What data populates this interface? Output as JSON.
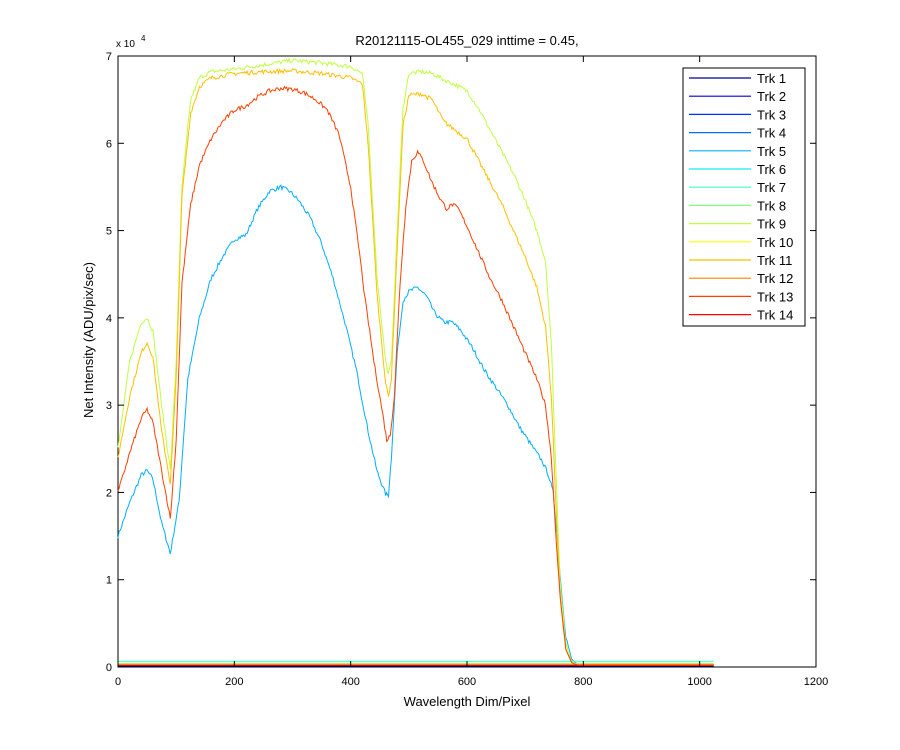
{
  "chart_data": {
    "type": "line",
    "title": "R20121115-OL455_029 inttime = 0.45,",
    "xlabel": "Wavelength Dim/Pixel",
    "ylabel": "Net Intensity (ADU/pix/sec)",
    "xlim": [
      0,
      1200
    ],
    "ylim": [
      0,
      70000
    ],
    "y_exponent_label": "x 10",
    "y_exponent_power": "4",
    "x_ticks": [
      0,
      200,
      400,
      600,
      800,
      1000,
      1200
    ],
    "x_tick_labels": [
      "0",
      "200",
      "400",
      "600",
      "800",
      "1000",
      "1200"
    ],
    "y_ticks": [
      0,
      10000,
      20000,
      30000,
      40000,
      50000,
      60000,
      70000
    ],
    "y_tick_labels": [
      "0",
      "1",
      "2",
      "3",
      "4",
      "5",
      "6",
      "7"
    ],
    "grid": false,
    "legend_position": "top-right",
    "series": [
      {
        "name": "Trk 1",
        "color": "#00008f",
        "x": [
          0,
          1024
        ],
        "y": [
          100,
          100
        ]
      },
      {
        "name": "Trk 2",
        "color": "#0000d0",
        "x": [
          0,
          1024
        ],
        "y": [
          150,
          150
        ]
      },
      {
        "name": "Trk 3",
        "color": "#0030ff",
        "x": [
          0,
          1024
        ],
        "y": [
          200,
          200
        ]
      },
      {
        "name": "Trk 4",
        "color": "#0070ff",
        "x": [
          0,
          1024
        ],
        "y": [
          250,
          250
        ]
      },
      {
        "name": "Trk 5",
        "color": "#00afff",
        "x": [
          0,
          20,
          40,
          50,
          60,
          75,
          90,
          105,
          120,
          140,
          160,
          180,
          200,
          220,
          240,
          260,
          280,
          295,
          310,
          330,
          350,
          370,
          390,
          410,
          430,
          445,
          460,
          465,
          470,
          480,
          490,
          500,
          515,
          530,
          545,
          560,
          575,
          590,
          610,
          630,
          650,
          670,
          690,
          710,
          730,
          740,
          748,
          755,
          762,
          770,
          780,
          790,
          800,
          1024
        ],
        "y": [
          15000,
          18800,
          22000,
          22500,
          21500,
          16500,
          13000,
          19000,
          33000,
          40000,
          44500,
          47000,
          49000,
          49500,
          52500,
          54500,
          55000,
          54500,
          53500,
          51500,
          48500,
          44500,
          39500,
          34000,
          27000,
          22500,
          19800,
          19700,
          24000,
          36000,
          42000,
          43000,
          43500,
          42500,
          40500,
          39500,
          39500,
          38500,
          36500,
          34000,
          32000,
          30000,
          27500,
          25500,
          23500,
          22000,
          20000,
          15000,
          9000,
          3500,
          900,
          300,
          200,
          200
        ]
      },
      {
        "name": "Trk 6",
        "color": "#10efef",
        "x": [
          0,
          1024
        ],
        "y": [
          400,
          400
        ]
      },
      {
        "name": "Trk 7",
        "color": "#40ffbf",
        "x": [
          0,
          1024
        ],
        "y": [
          650,
          650
        ]
      },
      {
        "name": "Trk 8",
        "color": "#80ff80",
        "x": [
          0,
          1024
        ],
        "y": [
          300,
          300
        ]
      },
      {
        "name": "Trk 9",
        "color": "#bfff40",
        "x": [
          0,
          20,
          40,
          50,
          60,
          75,
          90,
          100,
          110,
          125,
          140,
          160,
          200,
          250,
          300,
          350,
          400,
          420,
          430,
          445,
          460,
          465,
          470,
          480,
          490,
          500,
          520,
          540,
          560,
          580,
          600,
          620,
          640,
          660,
          680,
          700,
          720,
          735,
          745,
          752,
          760,
          770,
          780,
          790,
          800,
          1024
        ],
        "y": [
          25000,
          35000,
          39500,
          40000,
          38500,
          30000,
          22500,
          35000,
          55000,
          65000,
          67500,
          68200,
          68500,
          69000,
          69500,
          69200,
          68800,
          68000,
          62000,
          45000,
          35000,
          33500,
          35000,
          50000,
          64000,
          68000,
          68200,
          68000,
          67300,
          66700,
          66000,
          64000,
          61500,
          59000,
          56500,
          53500,
          50000,
          46500,
          37000,
          24000,
          10000,
          2500,
          600,
          250,
          200,
          200
        ]
      },
      {
        "name": "Trk 10",
        "color": "#ffff00",
        "x": [
          0,
          1024
        ],
        "y": [
          350,
          350
        ]
      },
      {
        "name": "Trk 11",
        "color": "#ffbf00",
        "x": [
          0,
          20,
          40,
          50,
          60,
          75,
          90,
          100,
          110,
          125,
          140,
          160,
          200,
          250,
          300,
          350,
          400,
          420,
          430,
          445,
          460,
          465,
          470,
          480,
          490,
          500,
          520,
          540,
          560,
          580,
          600,
          620,
          640,
          660,
          680,
          700,
          720,
          735,
          745,
          752,
          760,
          770,
          780,
          790,
          800,
          1024
        ],
        "y": [
          24000,
          31000,
          36000,
          37200,
          35500,
          27000,
          21000,
          33000,
          54000,
          63500,
          66500,
          67500,
          68000,
          68200,
          68300,
          68000,
          67500,
          66800,
          60000,
          43000,
          32500,
          31000,
          33000,
          48000,
          62000,
          65500,
          65700,
          65000,
          62500,
          61500,
          60500,
          58000,
          55500,
          53000,
          50000,
          47000,
          43500,
          39000,
          31000,
          20000,
          8000,
          2000,
          500,
          200,
          200,
          200
        ]
      },
      {
        "name": "Trk 12",
        "color": "#ff8000",
        "x": [
          0,
          1024
        ],
        "y": [
          250,
          250
        ]
      },
      {
        "name": "Trk 13",
        "color": "#ff4000",
        "x": [
          0,
          20,
          40,
          50,
          60,
          75,
          90,
          100,
          110,
          125,
          140,
          160,
          180,
          200,
          220,
          240,
          260,
          280,
          300,
          320,
          340,
          360,
          380,
          400,
          415,
          425,
          440,
          455,
          462,
          468,
          475,
          485,
          495,
          505,
          515,
          525,
          540,
          555,
          565,
          575,
          585,
          600,
          620,
          640,
          660,
          680,
          700,
          720,
          735,
          745,
          752,
          760,
          770,
          780,
          790,
          800,
          1024
        ],
        "y": [
          20000,
          24500,
          28500,
          29500,
          28000,
          22500,
          17000,
          26000,
          44000,
          53000,
          57500,
          60500,
          62500,
          63800,
          64300,
          65300,
          66000,
          66300,
          66200,
          65800,
          65000,
          63800,
          61000,
          55000,
          47500,
          42000,
          35000,
          29000,
          26000,
          26500,
          31000,
          44000,
          53000,
          58000,
          59000,
          58000,
          55500,
          53500,
          52500,
          53000,
          52500,
          50500,
          47500,
          44500,
          42000,
          39000,
          36000,
          33000,
          30000,
          24000,
          16000,
          8000,
          2000,
          500,
          200,
          200,
          200
        ]
      },
      {
        "name": "Trk 14",
        "color": "#ff0000",
        "x": [
          0,
          1024
        ],
        "y": [
          200,
          200
        ]
      }
    ]
  }
}
